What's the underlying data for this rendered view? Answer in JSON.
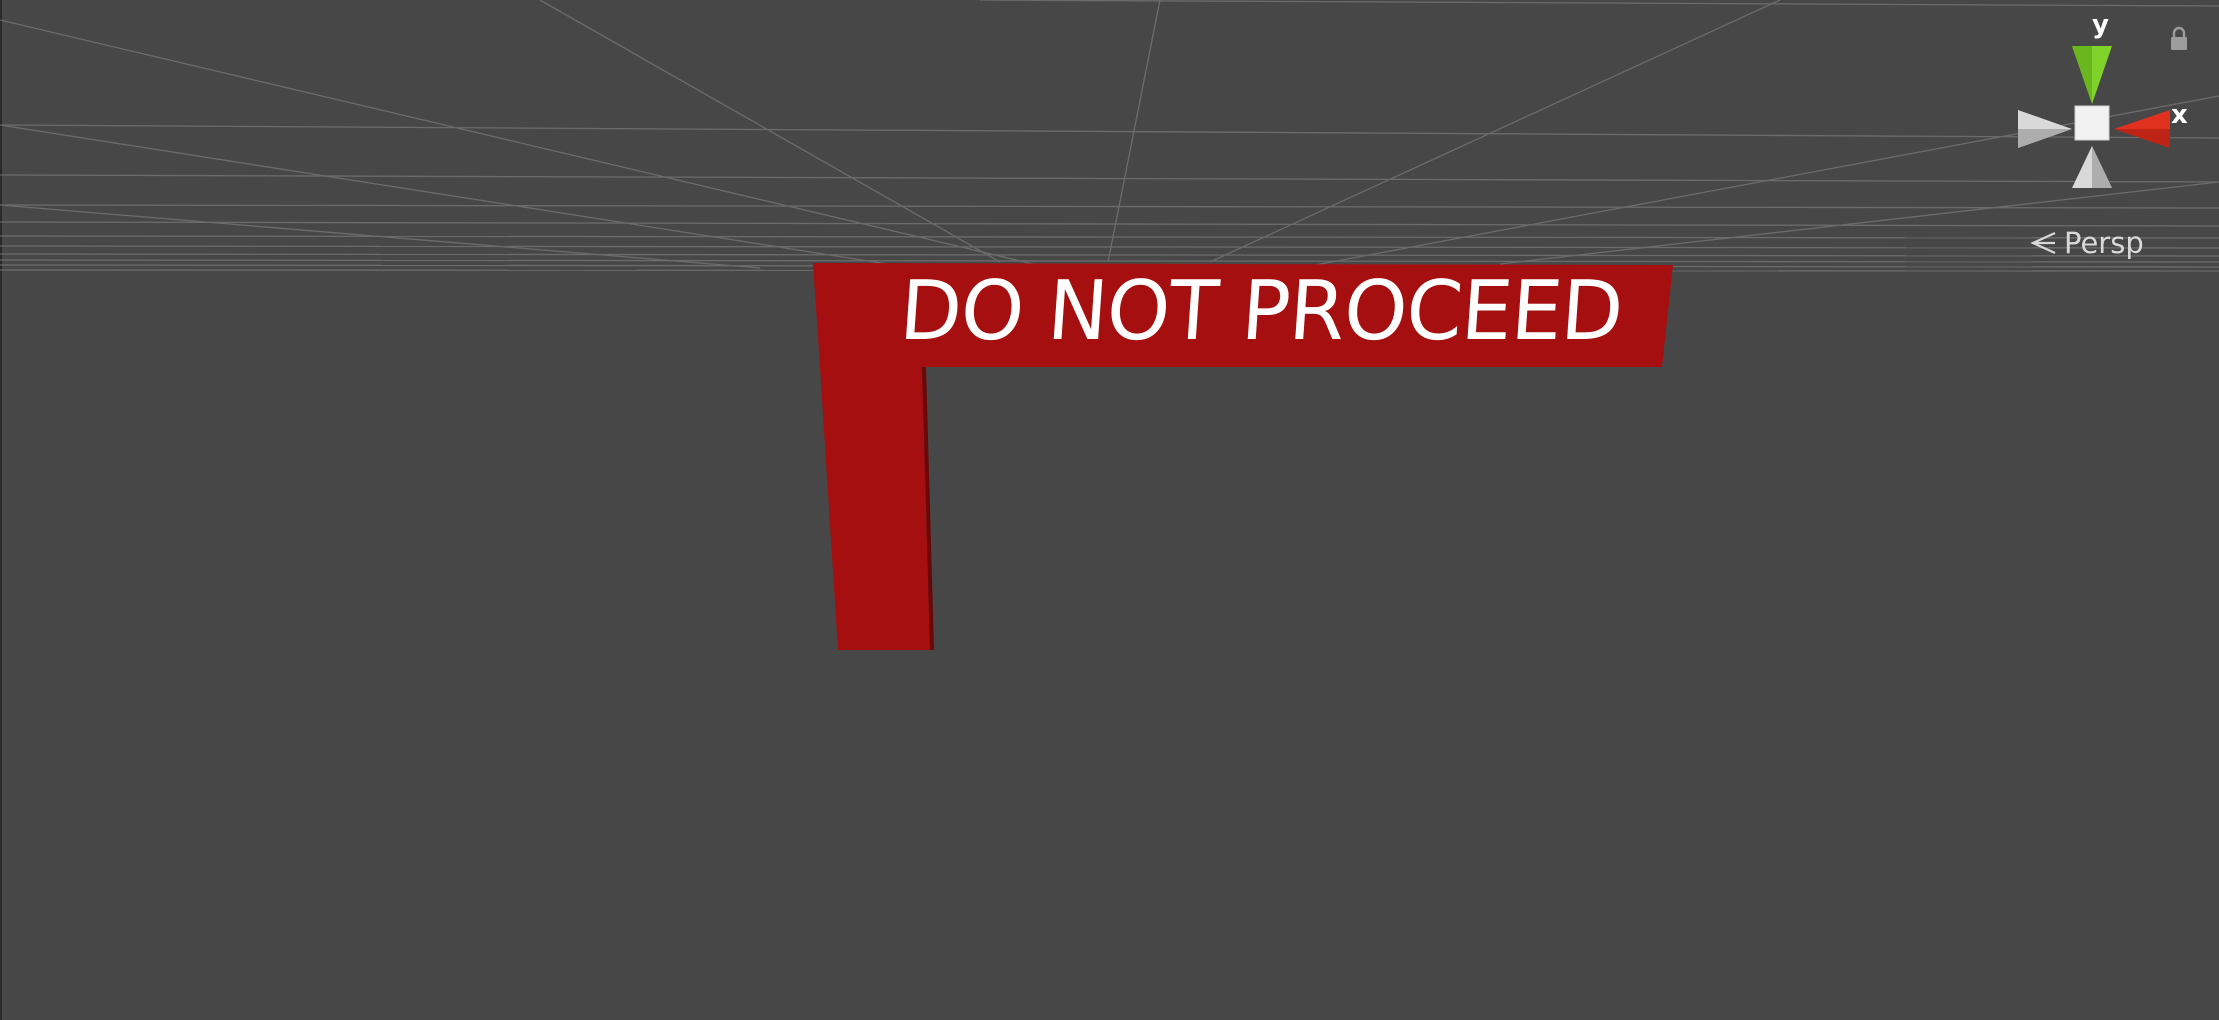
{
  "scene": {
    "background_color": "#474747",
    "sign": {
      "text": "DO NOT PROCEED",
      "color": "#a50f0f",
      "text_color": "#ffffff"
    }
  },
  "gizmo": {
    "y_label": "y",
    "x_label": "x",
    "y_color": "#7fd32b",
    "x_color": "#e0301e",
    "neutral_color": "#d9d9d9",
    "lock_icon": "lock-icon"
  },
  "view_mode": {
    "label": "Persp",
    "icon": "perspective-icon"
  }
}
